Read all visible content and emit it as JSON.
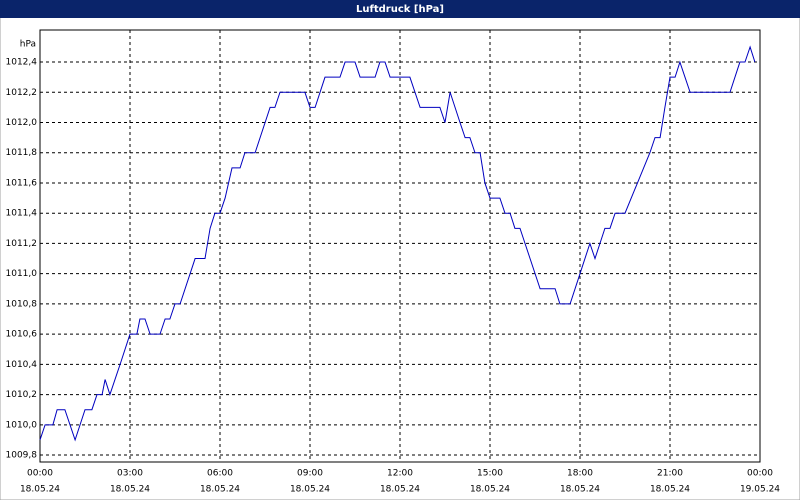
{
  "chart_data": {
    "type": "line",
    "title": "Luftdruck [hPa]",
    "y_unit": "hPa",
    "xlim": [
      0,
      24
    ],
    "ylim": [
      1009.754,
      1012.612
    ],
    "grid": true,
    "xticks": [
      {
        "value": 0,
        "label": "00:00"
      },
      {
        "value": 3,
        "label": "03:00"
      },
      {
        "value": 6,
        "label": "06:00"
      },
      {
        "value": 9,
        "label": "09:00"
      },
      {
        "value": 12,
        "label": "12:00"
      },
      {
        "value": 15,
        "label": "15:00"
      },
      {
        "value": 18,
        "label": "18:00"
      },
      {
        "value": 21,
        "label": "21:00"
      },
      {
        "value": 24,
        "label": "00:00"
      }
    ],
    "xtick_dates": [
      "18.05.24",
      "18.05.24",
      "18.05.24",
      "18.05.24",
      "18.05.24",
      "18.05.24",
      "18.05.24",
      "18.05.24",
      "19.05.24"
    ],
    "yticks": [
      {
        "value": 1009.8,
        "label": "1009,8"
      },
      {
        "value": 1010.0,
        "label": "1010,0"
      },
      {
        "value": 1010.2,
        "label": "1010,2"
      },
      {
        "value": 1010.4,
        "label": "1010,4"
      },
      {
        "value": 1010.6,
        "label": "1010,6"
      },
      {
        "value": 1010.8,
        "label": "1010,8"
      },
      {
        "value": 1011.0,
        "label": "1011,0"
      },
      {
        "value": 1011.2,
        "label": "1011,2"
      },
      {
        "value": 1011.4,
        "label": "1011,4"
      },
      {
        "value": 1011.6,
        "label": "1011,6"
      },
      {
        "value": 1011.8,
        "label": "1011,8"
      },
      {
        "value": 1012.0,
        "label": "1012,0"
      },
      {
        "value": 1012.2,
        "label": "1012,2"
      },
      {
        "value": 1012.4,
        "label": "1012,4"
      }
    ],
    "x": [
      0,
      0.17,
      0.43,
      0.57,
      0.83,
      1.17,
      1.5,
      1.73,
      1.9,
      2.07,
      2.17,
      2.33,
      2.5,
      2.67,
      3,
      3.23,
      3.33,
      3.5,
      3.67,
      4,
      4.17,
      4.33,
      4.5,
      4.67,
      5.17,
      5.5,
      5.67,
      5.83,
      6,
      6.17,
      6.4,
      6.67,
      6.83,
      7.17,
      7.67,
      7.83,
      8,
      8.83,
      9,
      9.17,
      9.5,
      10,
      10.17,
      10.5,
      10.67,
      11.17,
      11.33,
      11.5,
      11.67,
      12.33,
      12.67,
      13.33,
      13.5,
      13.67,
      14,
      14.17,
      14.33,
      14.5,
      14.67,
      14.83,
      15,
      15.33,
      15.5,
      15.67,
      15.83,
      16,
      16.67,
      17.17,
      17.33,
      17.67,
      18,
      18.33,
      18.5,
      18.83,
      19,
      19.17,
      19.5,
      20.33,
      20.5,
      20.67,
      20.83,
      21,
      21.17,
      21.33,
      21.5,
      21.67,
      23,
      23.33,
      23.5,
      23.67,
      23.83
    ],
    "series": [
      {
        "name": "Luftdruck",
        "color": "#0000c0",
        "values": [
          1009.9,
          1010.0,
          1010.0,
          1010.1,
          1010.1,
          1009.9,
          1010.1,
          1010.1,
          1010.2,
          1010.2,
          1010.3,
          1010.2,
          1010.3,
          1010.4,
          1010.6,
          1010.6,
          1010.7,
          1010.7,
          1010.6,
          1010.6,
          1010.7,
          1010.7,
          1010.8,
          1010.8,
          1011.1,
          1011.1,
          1011.3,
          1011.4,
          1011.4,
          1011.5,
          1011.7,
          1011.7,
          1011.8,
          1011.8,
          1012.1,
          1012.1,
          1012.2,
          1012.2,
          1012.1,
          1012.1,
          1012.3,
          1012.3,
          1012.4,
          1012.4,
          1012.3,
          1012.3,
          1012.4,
          1012.4,
          1012.3,
          1012.3,
          1012.1,
          1012.1,
          1012.0,
          1012.2,
          1012.0,
          1011.9,
          1011.9,
          1011.8,
          1011.8,
          1011.6,
          1011.5,
          1011.5,
          1011.4,
          1011.4,
          1011.3,
          1011.3,
          1010.9,
          1010.9,
          1010.8,
          1010.8,
          1011.0,
          1011.2,
          1011.1,
          1011.3,
          1011.3,
          1011.4,
          1011.4,
          1011.8,
          1011.9,
          1011.9,
          1012.1,
          1012.3,
          1012.3,
          1012.4,
          1012.3,
          1012.2,
          1012.2,
          1012.4,
          1012.4,
          1012.5,
          1012.4
        ]
      }
    ]
  }
}
